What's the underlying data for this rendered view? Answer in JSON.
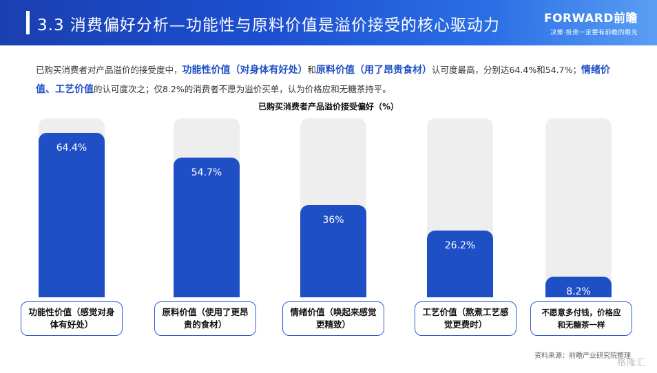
{
  "header": {
    "title": "3.3 消费偏好分析—功能性与原料价值是溢价接受的核心驱动力",
    "brand_name": "FORWARD前瞻",
    "brand_slogan": "决策·投资一定要有前瞻的眼光"
  },
  "description": {
    "p1": "已购买消费者对产品溢价的接受度中，",
    "h1": "功能性价值（对身体有好处）",
    "p2": "和",
    "h2": "原料价值（用了昂贵食材）",
    "p3": "认可度最高，分别达64.4%和54.7%；",
    "h3": "情绪价值、工艺价值",
    "p4": "的认可度次之；仅8.2%的消费者不愿为溢价买单，认为价格应和无糖茶持平。"
  },
  "chart_data": {
    "type": "bar",
    "title": "已购买消费者产品溢价接受偏好（%）",
    "categories": [
      "功能性价值（感觉对身体有好处）",
      "原料价值（使用了更昂贵的食材）",
      "情绪价值（唤起来感觉更精致）",
      "工艺价值（熬煮工艺感觉更费时）",
      "不愿意多付钱，价格应和无糖茶一样"
    ],
    "values": [
      64.4,
      54.7,
      36,
      26.2,
      8.2
    ],
    "value_labels": [
      "64.4%",
      "54.7%",
      "36%",
      "26.2%",
      "8.2%"
    ],
    "ylim": [
      0,
      70
    ],
    "grid": false,
    "legend": "none",
    "colors": {
      "bar": "#1f4fc5",
      "track": "#eeeeef",
      "border": "#2d5bd0"
    }
  },
  "footer": {
    "source": "资料来源：前瞻产业研究院整理",
    "watermark": "格隆汇"
  }
}
